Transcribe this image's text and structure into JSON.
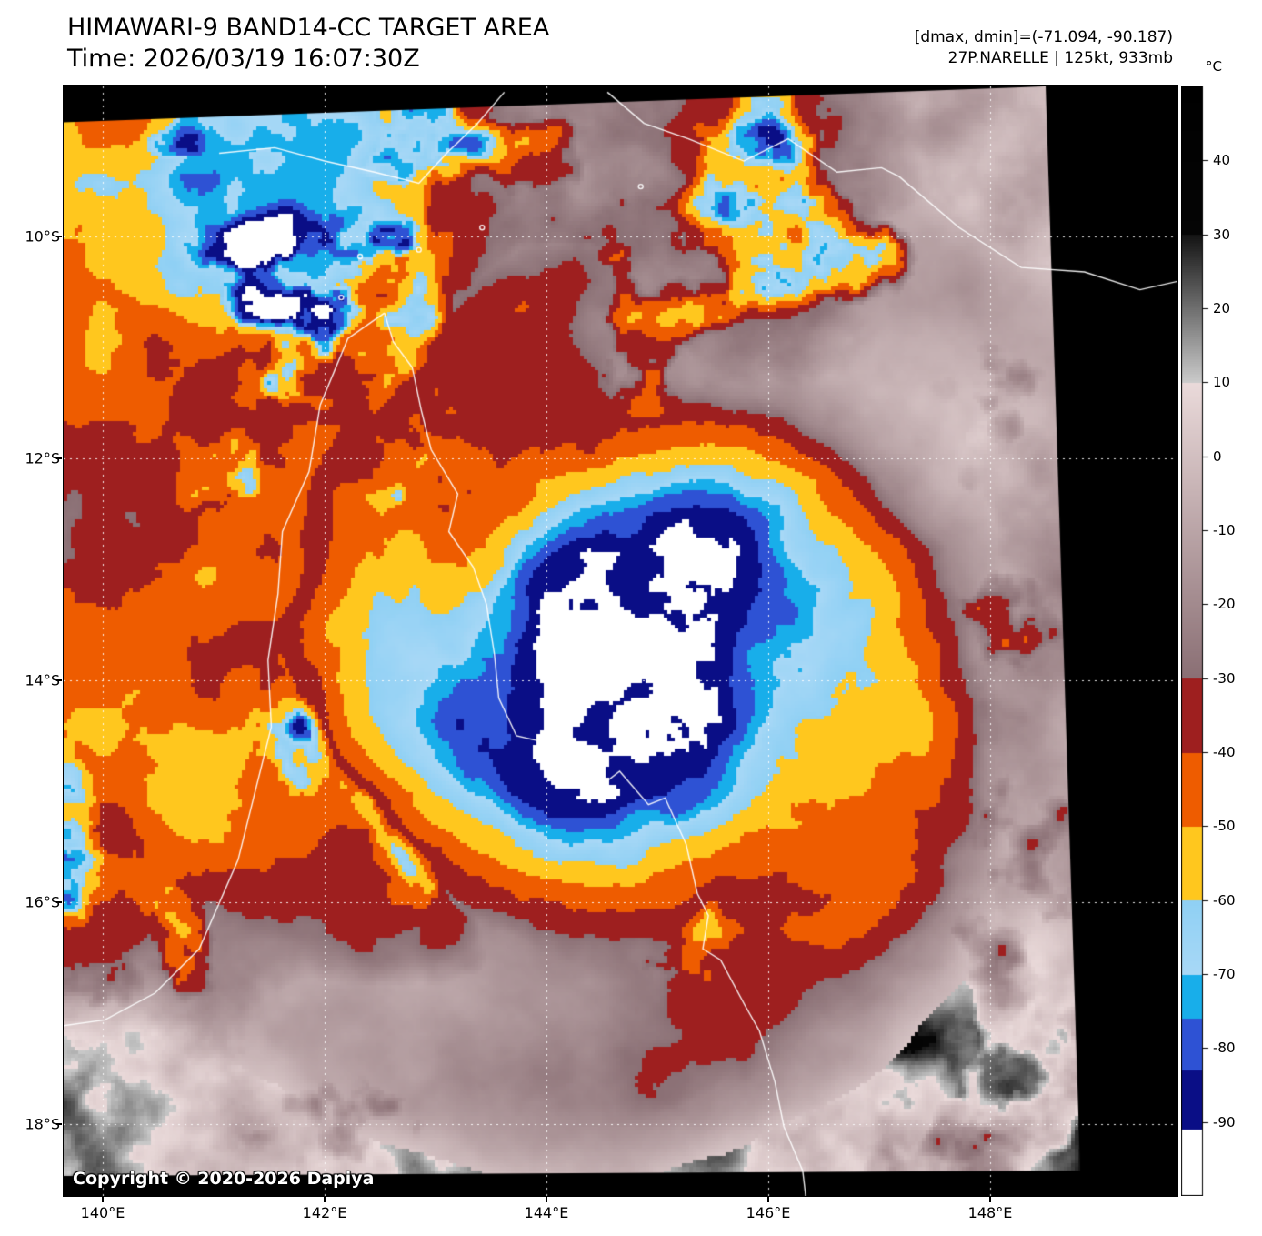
{
  "header": {
    "title": "HIMAWARI-9 BAND14-CC TARGET AREA",
    "time": "Time: 2026/03/19 16:07:30Z",
    "range_info": "[dmax, dmin]=(-71.094, -90.187)",
    "storm_info": "27P.NARELLE | 125kt, 933mb"
  },
  "colorbar": {
    "unit": "°C",
    "ticks": [
      "40",
      "30",
      "20",
      "10",
      "0",
      "-10",
      "-20",
      "-30",
      "-40",
      "-50",
      "-60",
      "-70",
      "-80",
      "-90"
    ],
    "vmax": 50,
    "vmin": -100,
    "stops": [
      {
        "from": 30,
        "to": 50,
        "c0": "#050505",
        "c1": "#000000"
      },
      {
        "from": 10,
        "to": 30,
        "c0": "#cbcbcb",
        "c1": "#141414"
      },
      {
        "from": -30,
        "to": 10,
        "c0": "#8a6f74",
        "c1": "#eadada"
      },
      {
        "from": -40,
        "to": -30,
        "c0": "#9e1f1f",
        "c1": "#9e1f1f"
      },
      {
        "from": -50,
        "to": -40,
        "c0": "#ee5c00",
        "c1": "#ee5c00"
      },
      {
        "from": -60,
        "to": -50,
        "c0": "#ffc71e",
        "c1": "#ffc71e"
      },
      {
        "from": -70,
        "to": -60,
        "c0": "#a8d8f6",
        "c1": "#8fd0f4"
      },
      {
        "from": -76,
        "to": -70,
        "c0": "#18aeea",
        "c1": "#18aeea"
      },
      {
        "from": -83,
        "to": -76,
        "c0": "#2e52d4",
        "c1": "#2e52d4"
      },
      {
        "from": -91,
        "to": -83,
        "c0": "#0a0e86",
        "c1": "#0a0e86"
      },
      {
        "from": -101,
        "to": -91,
        "c0": "#ffffff",
        "c1": "#ffffff"
      }
    ]
  },
  "axes": {
    "x": [
      "140°E",
      "142°E",
      "144°E",
      "146°E",
      "148°E"
    ],
    "y": [
      "10°S",
      "12°S",
      "14°S",
      "16°S",
      "18°S"
    ]
  },
  "map": {
    "copyright": "Copyright © 2020-2026 Dapiya"
  }
}
